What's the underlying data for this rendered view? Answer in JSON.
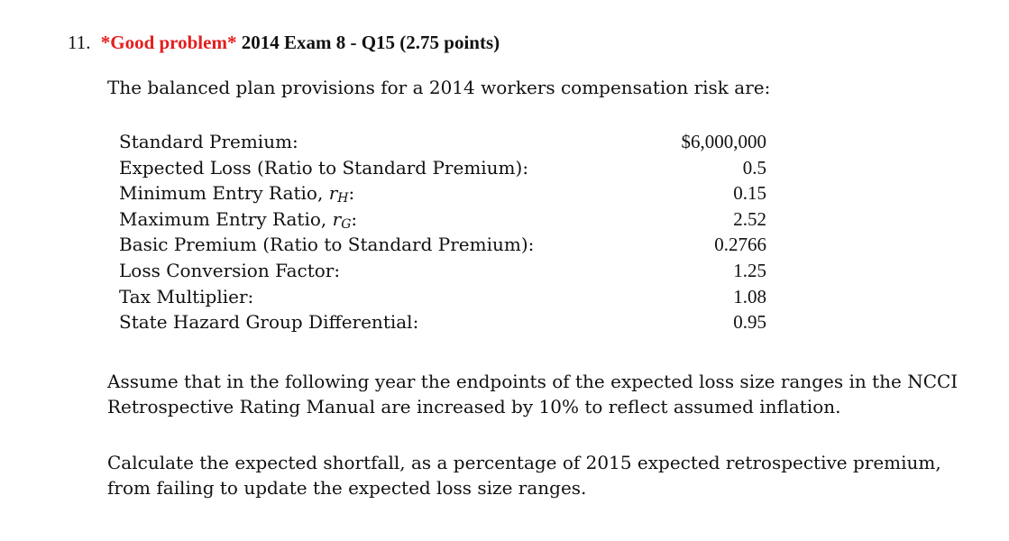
{
  "problem": {
    "number": "11.",
    "tag": "*Good problem*",
    "title": "2014 Exam 8 - Q15 (2.75 points)"
  },
  "intro": "The balanced plan provisions for a 2014 workers compensation risk are:",
  "params": [
    {
      "label": "Standard Premium:",
      "value": "$6,000,000"
    },
    {
      "label": "Expected Loss (Ratio to Standard Premium):",
      "value": "0.5"
    },
    {
      "label": "Minimum Entry Ratio, ",
      "var": "r",
      "sub": "H",
      "suffix": ":",
      "value": "0.15"
    },
    {
      "label": "Maximum Entry Ratio, ",
      "var": "r",
      "sub": "G",
      "suffix": ":",
      "value": "2.52"
    },
    {
      "label": "Basic Premium (Ratio to Standard Premium):",
      "value": "0.2766"
    },
    {
      "label": "Loss Conversion Factor:",
      "value": "1.25"
    },
    {
      "label": "Tax Multiplier:",
      "value": "1.08"
    },
    {
      "label": "State Hazard Group Differential:",
      "value": "0.95"
    }
  ],
  "paragraph1": "Assume that in the following year the endpoints of the expected loss size ranges in the NCCI Retrospective Rating Manual are increased by 10% to reflect assumed inflation.",
  "paragraph2": "Calculate the expected shortfall, as a percentage of 2015 expected retrospective premium, from failing to update the expected loss size ranges.",
  "colors": {
    "tag": "#e41e1e",
    "text": "#111111"
  }
}
